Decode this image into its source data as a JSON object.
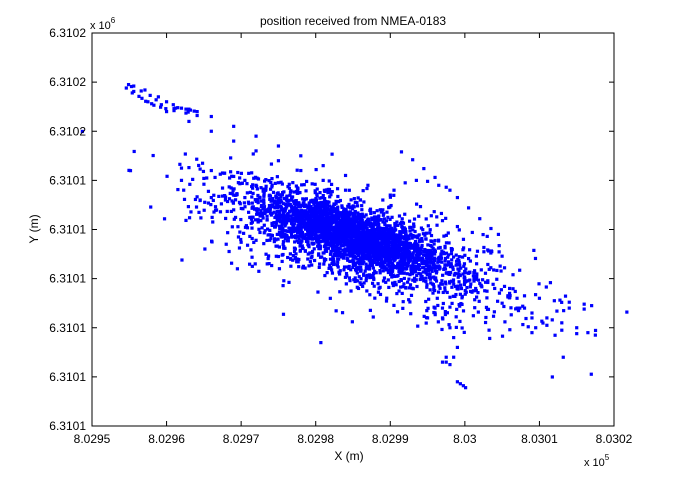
{
  "chart_data": {
    "type": "scatter",
    "title": "position received from NMEA-0183",
    "xlabel": "X (m)",
    "ylabel": "Y (m)",
    "x_exponent_label": "x 10",
    "x_exponent": "5",
    "y_exponent_label": "x 10",
    "y_exponent": "6",
    "xlim": [
      802950,
      803020
    ],
    "ylim": [
      6310140,
      6310220
    ],
    "x_tick_values": [
      802950,
      802960,
      802970,
      802980,
      802990,
      803000,
      803010,
      803020
    ],
    "x_tick_labels": [
      "8.0295",
      "8.0296",
      "8.0297",
      "8.0298",
      "8.0299",
      "8.03",
      "8.0301",
      "8.0302"
    ],
    "y_tick_values": [
      6310140,
      6310150,
      6310160,
      6310170,
      6310180,
      6310190,
      6310200,
      6310210,
      6310220
    ],
    "y_tick_labels": [
      "6.3101",
      "6.3101",
      "6.3101",
      "6.3101",
      "6.3101",
      "6.3101",
      "6.3102",
      "6.3102",
      "6.3102"
    ],
    "grid": false,
    "marker": "dot",
    "color": "#0000ff",
    "series": [
      {
        "points": [
          [
            802954.9,
            6310209.5
          ],
          [
            802955.6,
            6310209.2
          ],
          [
            802957.1,
            6310208.4
          ],
          [
            802958.9,
            6310207.0
          ],
          [
            802960.9,
            6310205.4
          ],
          [
            802962.9,
            6310203.9
          ],
          [
            802964.1,
            6310203.2
          ],
          [
            802962.6,
            6310203.7
          ],
          [
            802961.0,
            6310204.2
          ],
          [
            802959.9,
            6310204.6
          ],
          [
            802959.3,
            6310205.4
          ],
          [
            802958.6,
            6310206.4
          ],
          [
            802957.8,
            6310207.3
          ],
          [
            802956.6,
            6310208.2
          ],
          [
            802955.3,
            6310209.1
          ],
          [
            802954.6,
            6310208.8
          ],
          [
            802955.4,
            6310207.8
          ],
          [
            802956.7,
            6310206.7
          ],
          [
            802958.0,
            6310205.6
          ],
          [
            802959.2,
            6310204.9
          ],
          [
            802958.3,
            6310205.3
          ],
          [
            802957.2,
            6310206.1
          ],
          [
            802956.3,
            6310207.1
          ],
          [
            802955.6,
            6310208.1
          ],
          [
            802957.5,
            6310206.0
          ],
          [
            802960.0,
            6310204.0
          ],
          [
            802963.0,
            6310202.0
          ],
          [
            802966.0,
            6310200.0
          ],
          [
            802969.0,
            6310198.0
          ],
          [
            802972.0,
            6310196.0
          ],
          [
            802975.0,
            6310194.0
          ],
          [
            802978.0,
            6310192.0
          ],
          [
            802981.0,
            6310190.0
          ],
          [
            802984.0,
            6310188.0
          ],
          [
            802986.0,
            6310186.0
          ],
          [
            802989.0,
            6310184.0
          ],
          [
            802960.0,
            6310206.0
          ],
          [
            802963.0,
            6310204.5
          ],
          [
            802966.0,
            6310203.0
          ],
          [
            802969.0,
            6310201.0
          ],
          [
            802972.0,
            6310199.0
          ],
          [
            802975.0,
            6310197.0
          ],
          [
            802978.0,
            6310195.0
          ],
          [
            802981.0,
            6310193.0
          ],
          [
            802984.0,
            6310191.0
          ],
          [
            802987.0,
            6310189.0
          ],
          [
            802990.0,
            6310187.0
          ],
          [
            802961.0,
            6310204.6
          ],
          [
            802961.2,
            6310204.7
          ],
          [
            802961.5,
            6310204.8
          ],
          [
            802962.0,
            6310204.7
          ],
          [
            802962.6,
            6310204.5
          ],
          [
            802963.2,
            6310204.3
          ],
          [
            802963.7,
            6310204.1
          ],
          [
            802964.1,
            6310204.0
          ],
          [
            802962.0,
            6310192.5
          ],
          [
            802963.0,
            6310192.6
          ],
          [
            802964.5,
            6310192.3
          ],
          [
            802966.0,
            6310192.0
          ],
          [
            802967.5,
            6310191.5
          ],
          [
            802969.0,
            6310190.8
          ],
          [
            802970.5,
            6310190.0
          ],
          [
            802972.0,
            6310189.0
          ],
          [
            802962.0,
            6310190.0
          ],
          [
            802963.5,
            6310190.2
          ],
          [
            802965.0,
            6310190.4
          ],
          [
            802966.5,
            6310190.6
          ],
          [
            802964.5,
            6310186.0
          ],
          [
            802966.0,
            6310186.5
          ],
          [
            802967.5,
            6310186.8
          ],
          [
            802969.0,
            6310187.0
          ],
          [
            802970.5,
            6310186.5
          ],
          [
            802972.0,
            6310186.0
          ],
          [
            802969.0,
            6310184.0
          ],
          [
            802971.0,
            6310183.5
          ],
          [
            802968.0,
            6310177.0
          ],
          [
            802970.0,
            6310177.4
          ],
          [
            802972.0,
            6310177.8
          ],
          [
            802974.0,
            6310178.2
          ],
          [
            802976.0,
            6310178.8
          ],
          [
            802978.0,
            6310179.4
          ],
          [
            802969.5,
            6310172.0
          ],
          [
            802971.5,
            6310172.5
          ],
          [
            802973.5,
            6310173.0
          ],
          [
            802975.5,
            6310173.5
          ],
          [
            802977.5,
            6310174.0
          ],
          [
            802979.5,
            6310174.5
          ],
          [
            802975.0,
            6310174.5
          ],
          [
            802977.0,
            6310174.7
          ],
          [
            802979.0,
            6310175.0
          ],
          [
            802981.0,
            6310175.2
          ],
          [
            802991.5,
            6310195.8
          ],
          [
            802993.0,
            6310194.2
          ],
          [
            802994.5,
            6310192.4
          ],
          [
            802996.0,
            6310190.6
          ],
          [
            802997.5,
            6310188.6
          ],
          [
            802999.0,
            6310186.5
          ],
          [
            803000.5,
            6310184.4
          ],
          [
            803002.0,
            6310182.2
          ],
          [
            803003.5,
            6310180.2
          ],
          [
            803004.5,
            6310179.0
          ],
          [
            803003.0,
            6310178.6
          ],
          [
            803001.0,
            6310179.4
          ],
          [
            802999.0,
            6310180.6
          ],
          [
            802997.0,
            6310181.8
          ],
          [
            802995.5,
            6310182.8
          ],
          [
            802989.0,
            6310186.0
          ],
          [
            802990.5,
            6310188.0
          ],
          [
            802992.0,
            6310189.5
          ],
          [
            802993.5,
            6310190.0
          ],
          [
            802995.0,
            6310189.8
          ],
          [
            802996.5,
            6310189.0
          ],
          [
            802998.0,
            6310188.0
          ],
          [
            803000.0,
            6310170.0
          ],
          [
            803002.0,
            6310169.0
          ],
          [
            803004.0,
            6310168.0
          ],
          [
            803006.0,
            6310167.0
          ],
          [
            803008.0,
            6310166.5
          ],
          [
            803010.0,
            6310166.0
          ],
          [
            803012.0,
            6310165.5
          ],
          [
            803014.0,
            6310165.2
          ],
          [
            803016.0,
            6310164.8
          ],
          [
            803017.0,
            6310164.5
          ],
          [
            803016.0,
            6310163.8
          ],
          [
            803014.0,
            6310164.0
          ],
          [
            803005.0,
            6310165.0
          ],
          [
            803007.0,
            6310164.0
          ],
          [
            803009.0,
            6310163.0
          ],
          [
            803011.0,
            6310162.0
          ],
          [
            803013.0,
            6310161.0
          ],
          [
            803015.0,
            6310160.0
          ],
          [
            803016.5,
            6310159.0
          ],
          [
            803017.5,
            6310158.5
          ],
          [
            803015.0,
            6310158.8
          ],
          [
            803013.0,
            6310159.5
          ],
          [
            803011.0,
            6310160.5
          ],
          [
            803006.0,
            6310168.0
          ],
          [
            803007.0,
            6310166.0
          ],
          [
            803008.0,
            6310164.0
          ],
          [
            803009.0,
            6310162.0
          ],
          [
            803009.5,
            6310160.0
          ],
          [
            803009.0,
            6310159.0
          ],
          [
            803008.5,
            6310160.2
          ],
          [
            802996.0,
            6310164.0
          ],
          [
            802997.0,
            6310162.0
          ],
          [
            802998.0,
            6310160.0
          ],
          [
            802998.5,
            6310158.0
          ],
          [
            802999.0,
            6310156.0
          ],
          [
            802998.5,
            6310154.0
          ],
          [
            802998.0,
            6310152.5
          ],
          [
            802997.0,
            6310153.0
          ],
          [
            802999.0,
            6310149.0
          ],
          [
            802999.4,
            6310148.6
          ],
          [
            802999.8,
            6310148.2
          ],
          [
            803000.1,
            6310147.8
          ],
          [
            802997.5,
            6310154.0
          ],
          [
            802997.5,
            6310153.0
          ],
          [
            802995.0,
            6310162.0
          ],
          [
            802996.0,
            6310163.0
          ],
          [
            802997.0,
            6310164.0
          ],
          [
            802998.0,
            6310164.2
          ]
        ],
        "cluster": {
          "cx": 802984.5,
          "cy": 6310179.0,
          "sx": 6.5,
          "sy": 4.2,
          "rho": -0.72,
          "count": 2600
        },
        "halo": {
          "cx": 802987.0,
          "cy": 6310175.5,
          "sx": 11.0,
          "sy": 7.5,
          "rho": -0.7,
          "count": 900
        }
      }
    ]
  }
}
